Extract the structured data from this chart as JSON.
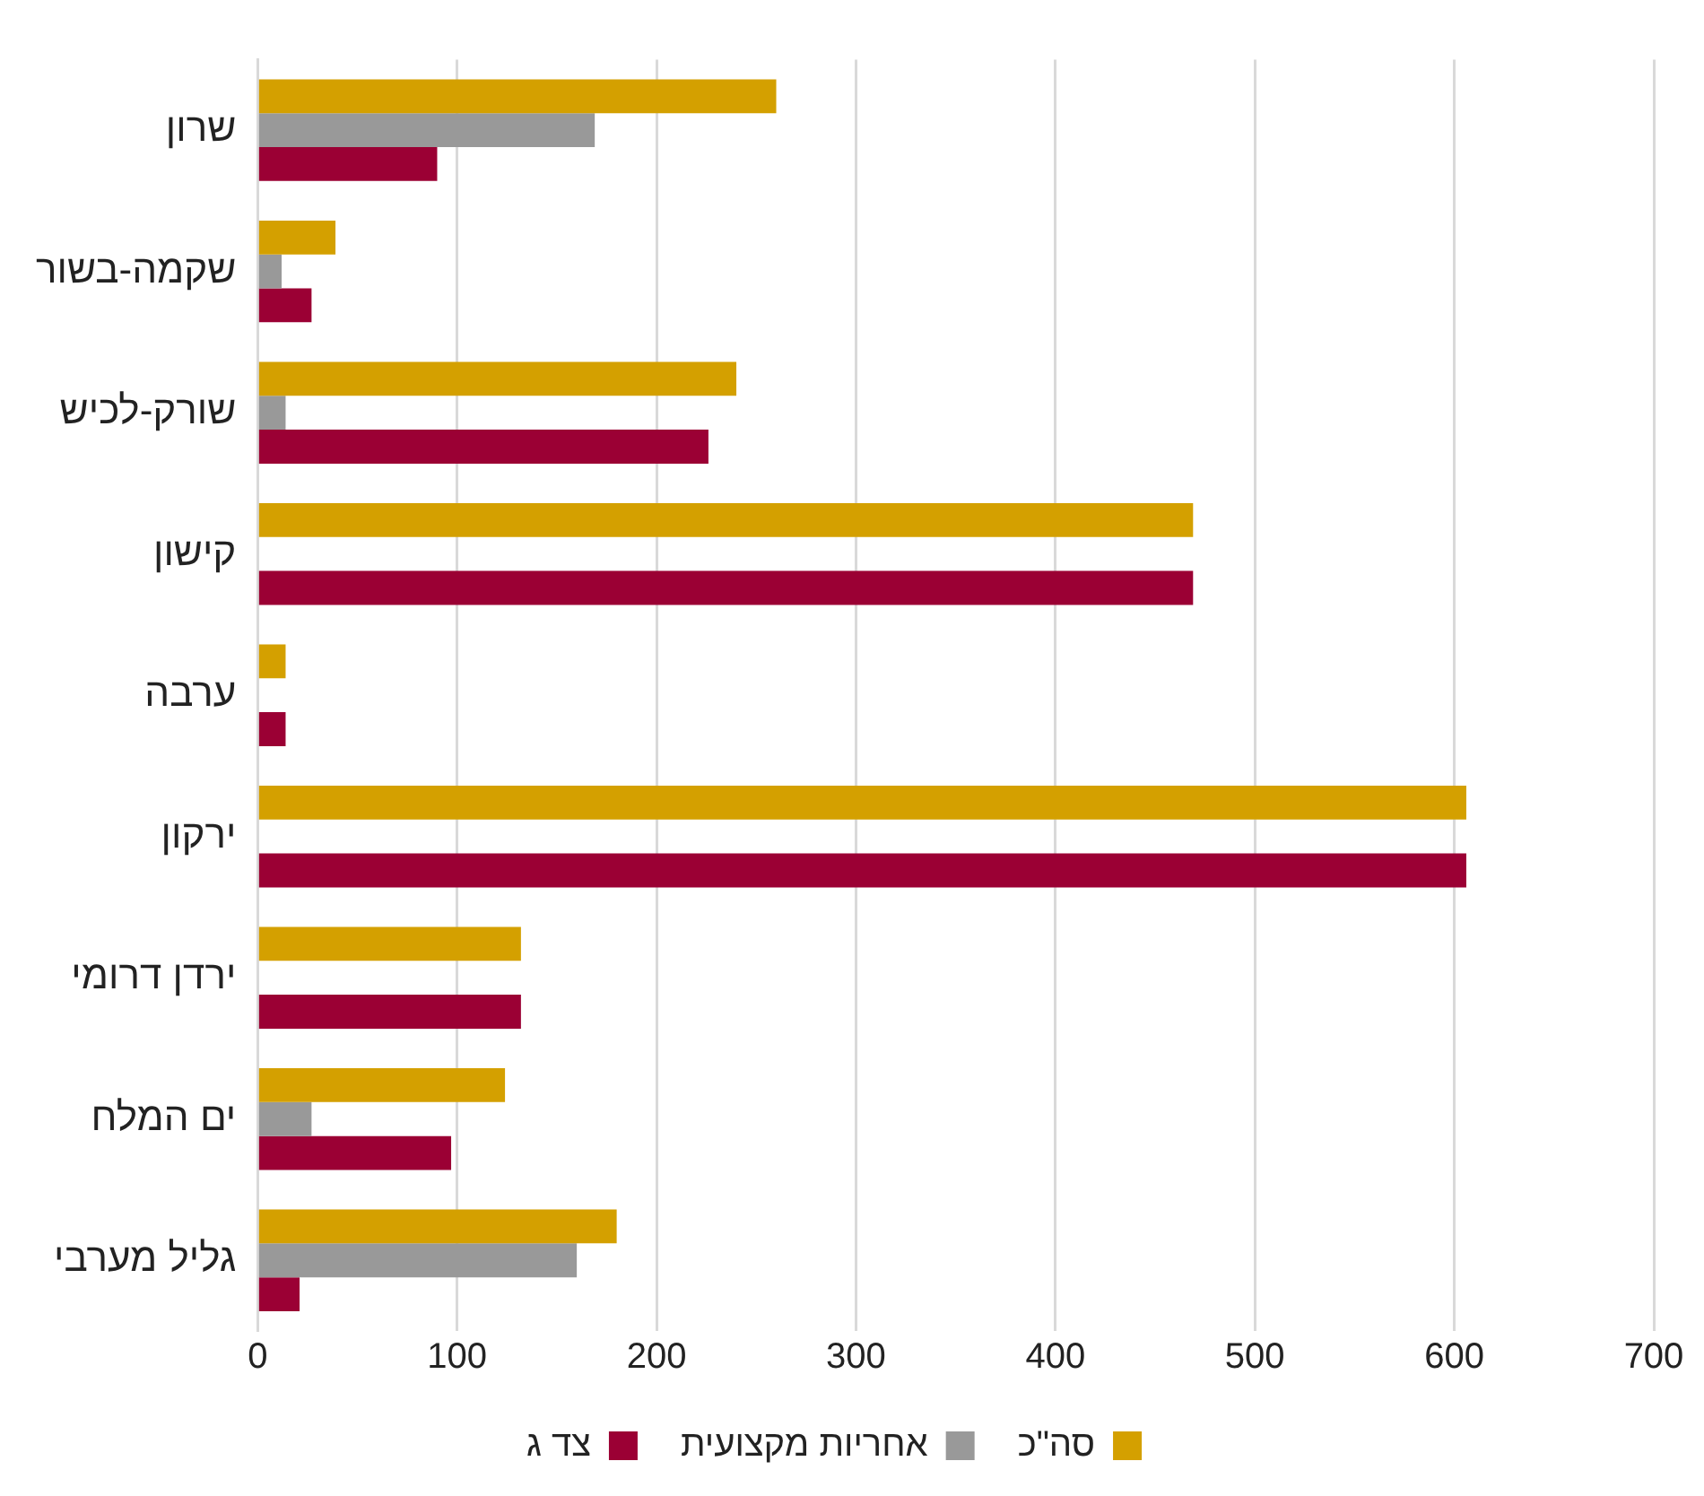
{
  "chart_data": {
    "type": "bar",
    "orientation": "horizontal",
    "categories": [
      "שרון",
      "שקמה-בשור",
      "שורק-לכיש",
      "קישון",
      "ערבה",
      "ירקון",
      "ירדן דרומי",
      "ים המלח",
      "גליל מערבי"
    ],
    "series": [
      {
        "name": "סה\"כ",
        "color": "#d4a000",
        "values": [
          260,
          39,
          240,
          469,
          14,
          606,
          132,
          124,
          180
        ]
      },
      {
        "name": "אחריות מקצועית",
        "color": "#999999",
        "values": [
          169,
          12,
          14,
          null,
          null,
          null,
          null,
          27,
          160
        ]
      },
      {
        "name": "צד ג",
        "color": "#9b0034",
        "values": [
          90,
          27,
          226,
          469,
          14,
          606,
          132,
          97,
          21
        ]
      }
    ],
    "xlim": [
      0,
      700
    ],
    "xticks": [
      0,
      100,
      200,
      300,
      400,
      500,
      600,
      700
    ],
    "grid": "x",
    "legend": "bottom"
  }
}
